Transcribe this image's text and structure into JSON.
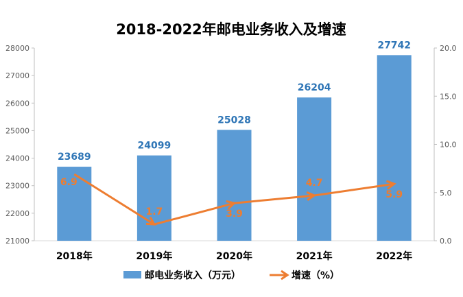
{
  "chart_data": {
    "type": "bar+line",
    "title": "2018-2022年邮电业务收入及增速",
    "categories": [
      "2018年",
      "2019年",
      "2020年",
      "2021年",
      "2022年"
    ],
    "series": [
      {
        "name": "邮电业务收入（万元）",
        "type": "bar",
        "axis": "left",
        "color": "#5b9bd5",
        "values": [
          23689,
          24099,
          25028,
          26204,
          27742
        ]
      },
      {
        "name": "增速（%）",
        "type": "line",
        "axis": "right",
        "color": "#ed7d31",
        "values": [
          6.9,
          1.7,
          3.9,
          4.7,
          5.9
        ]
      }
    ],
    "y_left": {
      "range": [
        21000,
        28000
      ],
      "ticks": [
        "21000",
        "22000",
        "23000",
        "24000",
        "25000",
        "26000",
        "27000",
        "28000"
      ]
    },
    "y_right": {
      "range": [
        0,
        20
      ],
      "ticks": [
        "0.0",
        "5.0",
        "10.0",
        "15.0",
        "20.0"
      ]
    },
    "bar_label_color": "#2e75b6",
    "legend_position": "bottom"
  }
}
